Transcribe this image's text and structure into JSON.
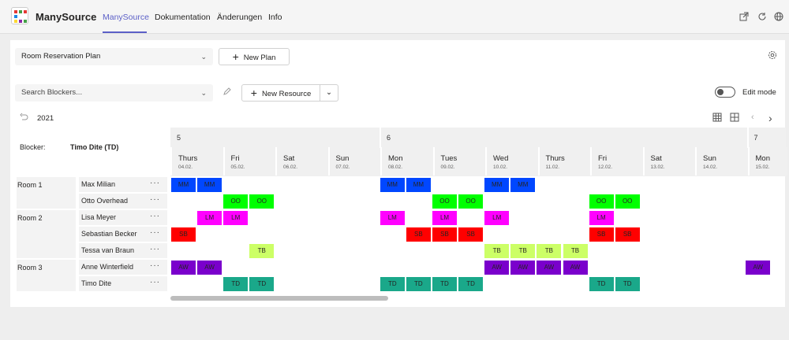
{
  "app": {
    "name": "ManySource"
  },
  "tabs": [
    {
      "label": "ManySource",
      "active": true
    },
    {
      "label": "Dokumentation",
      "active": false
    },
    {
      "label": "Änderungen",
      "active": false
    },
    {
      "label": "Info",
      "active": false
    }
  ],
  "topicons": [
    "popout-icon",
    "refresh-icon",
    "globe-icon"
  ],
  "toolbar": {
    "plan_select": "Room Reservation Plan",
    "new_plan": "New Plan"
  },
  "toolbar2": {
    "search_placeholder": "Search Blockers...",
    "new_resource": "New Resource",
    "edit_mode": "Edit mode"
  },
  "calendar": {
    "year": "2021",
    "blocker_label": "Blocker:",
    "blocker_value": "Timo Dite (TD)"
  },
  "weeks": [
    "5",
    "6",
    "7"
  ],
  "days": [
    {
      "name": "Thurs",
      "date": "04.02."
    },
    {
      "name": "Fri",
      "date": "05.02."
    },
    {
      "name": "Sat",
      "date": "06.02."
    },
    {
      "name": "Sun",
      "date": "07.02."
    },
    {
      "name": "Mon",
      "date": "08.02."
    },
    {
      "name": "Tues",
      "date": "09.02."
    },
    {
      "name": "Wed",
      "date": "10.02."
    },
    {
      "name": "Thurs",
      "date": "11.02."
    },
    {
      "name": "Fri",
      "date": "12.02."
    },
    {
      "name": "Sat",
      "date": "13.02."
    },
    {
      "name": "Sun",
      "date": "14.02."
    },
    {
      "name": "Mon",
      "date": "15.02."
    }
  ],
  "rooms": [
    "Room 1",
    "Room 2",
    "Room 3"
  ],
  "resources": [
    "Max Milian",
    "Otto Overhead",
    "Lisa Meyer",
    "Sebastian Becker",
    "Tessa van Braun",
    "Anne Winterfield",
    "Timo Dite"
  ],
  "more_label": "···",
  "colors": {
    "MM": "#0047ff",
    "OO": "#00ff00",
    "LM": "#ff00ff",
    "SB": "#ff0000",
    "TB": "#ccff66",
    "AW": "#7a00cc",
    "TD": "#1aa88a",
    "accent": "#5b5fc7"
  },
  "bookings": [
    {
      "row": 0,
      "label": "MM",
      "slots": [
        0,
        1,
        8,
        9,
        12,
        13
      ]
    },
    {
      "row": 1,
      "label": "OO",
      "slots": [
        2,
        3,
        10,
        11,
        16,
        17
      ]
    },
    {
      "row": 2,
      "label": "LM",
      "slots": [
        1,
        2,
        8,
        10,
        12,
        16
      ]
    },
    {
      "row": 3,
      "label": "SB",
      "slots": [
        0,
        9,
        10,
        11,
        16,
        17
      ]
    },
    {
      "row": 4,
      "label": "TB",
      "slots": [
        3,
        12,
        13,
        14,
        15
      ]
    },
    {
      "row": 5,
      "label": "AW",
      "slots": [
        0,
        1,
        12,
        13,
        14,
        15,
        22
      ]
    },
    {
      "row": 6,
      "label": "TD",
      "slots": [
        2,
        3,
        8,
        9,
        10,
        11,
        16,
        17
      ]
    }
  ]
}
